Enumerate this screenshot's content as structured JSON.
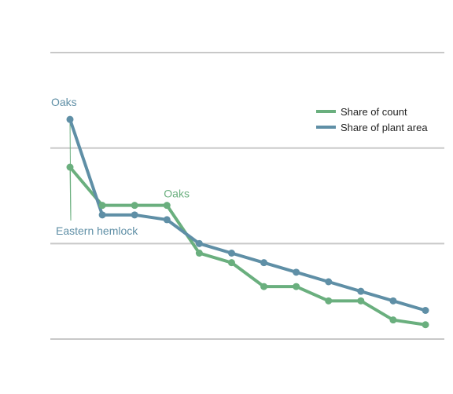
{
  "chart_data": {
    "type": "line",
    "title": "",
    "xlabel": "",
    "ylabel": "",
    "x": [
      1,
      2,
      3,
      4,
      5,
      6,
      7,
      8,
      9,
      10,
      11,
      12
    ],
    "ylim": [
      0,
      3
    ],
    "grid": true,
    "legend": "top-right",
    "series": [
      {
        "name": "Share of count",
        "color": "#6aaf7e",
        "values": [
          1.8,
          1.4,
          1.4,
          1.4,
          0.9,
          0.8,
          0.55,
          0.55,
          0.4,
          0.4,
          0.2,
          0.15
        ]
      },
      {
        "name": "Share of plant area",
        "color": "#5f8fa6",
        "values": [
          2.3,
          1.3,
          1.3,
          1.25,
          1.0,
          0.9,
          0.8,
          0.7,
          0.6,
          0.5,
          0.4,
          0.3
        ]
      }
    ],
    "annotations": [
      {
        "text": "Oaks",
        "series": 1,
        "point": 0,
        "color": "#5f8fa6"
      },
      {
        "text": "Oaks",
        "series": 0,
        "point": 3,
        "color": "#6aaf7e"
      },
      {
        "text": "Eastern hemlock",
        "series": 0,
        "point": 0,
        "color": "#5f8fa6",
        "leader_points": [
          [
            0,
            0
          ],
          [
            1,
            0
          ]
        ]
      }
    ]
  }
}
